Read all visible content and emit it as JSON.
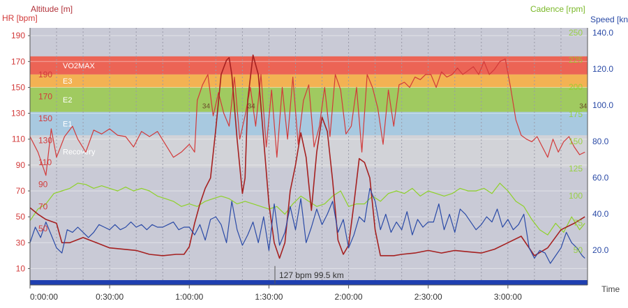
{
  "chart_data": {
    "type": "line",
    "axes": {
      "hr": {
        "title": "HR [bpm]",
        "ticks": [
          10,
          30,
          50,
          70,
          90,
          110,
          130,
          150,
          170,
          190
        ],
        "range": [
          0,
          196
        ],
        "color": "#d23a3a"
      },
      "altitude": {
        "title": "Altitude [m]",
        "ticks": [
          50,
          70,
          90,
          110,
          130,
          150,
          170,
          190
        ],
        "color": "#d23a3a"
      },
      "cadence": {
        "title": "Cadence [rpm]",
        "ticks": [
          50,
          75,
          100,
          125,
          150,
          175,
          200,
          225,
          250
        ],
        "color": "#8fd12a"
      },
      "speed": {
        "title": "Speed [kn",
        "ticks": [
          "20.0",
          "40.0",
          "60.0",
          "80.0",
          "100.0",
          "120.0",
          "140.0"
        ],
        "color": "#2a4aa6"
      },
      "time": {
        "title": "Time",
        "ticks": [
          "0:00:00",
          "0:30:00",
          "1:00:00",
          "1:30:00",
          "2:00:00",
          "2:30:00",
          "3:00:00"
        ],
        "range_min": [
          0,
          210
        ]
      }
    },
    "hr_zones": [
      {
        "name": "VO2MAX",
        "from": 160,
        "to": 174,
        "color": "#ee5e4e"
      },
      {
        "name": "E3",
        "from": 150,
        "to": 160,
        "color": "#f5b04c"
      },
      {
        "name": "E2",
        "from": 131,
        "to": 150,
        "color": "#9ec95a"
      },
      {
        "name": "E1",
        "from": 113,
        "to": 131,
        "color": "#a6c8e0"
      },
      {
        "name": "Recovery",
        "from": 88,
        "to": 113,
        "color": "#d3d3d8"
      }
    ],
    "annotations": [
      "34",
      "34",
      "34"
    ],
    "cursor_label": "127 bpm 99.5 km",
    "series": [
      {
        "name": "HR",
        "axis": "hr",
        "color": "#d23a3a",
        "x": [
          0,
          3,
          6,
          8,
          10,
          13,
          16,
          18,
          21,
          24,
          27,
          30,
          33,
          36,
          39,
          42,
          45,
          48,
          51,
          54,
          57,
          60,
          62,
          63,
          65,
          67,
          69,
          71,
          73,
          75,
          77,
          79,
          81,
          83,
          85,
          87,
          89,
          91,
          93,
          95,
          97,
          99,
          101,
          103,
          105,
          107,
          109,
          111,
          113,
          115,
          117,
          119,
          121,
          123,
          125,
          127,
          129,
          131,
          133,
          135,
          137,
          139,
          141,
          143,
          145,
          147,
          149,
          151,
          153,
          155,
          157,
          159,
          161,
          163,
          165,
          167,
          169,
          171,
          173,
          175,
          177,
          179,
          181,
          183,
          185,
          187,
          189,
          191,
          193,
          195,
          197,
          199,
          201,
          203,
          205,
          207,
          209
        ],
        "y": [
          112,
          100,
          82,
          118,
          96,
          112,
          120,
          110,
          100,
          117,
          114,
          118,
          113,
          112,
          104,
          116,
          112,
          116,
          106,
          96,
          100,
          106,
          100,
          140,
          152,
          160,
          128,
          146,
          130,
          120,
          158,
          110,
          128,
          150,
          120,
          160,
          104,
          148,
          96,
          150,
          110,
          158,
          106,
          140,
          152,
          104,
          120,
          150,
          112,
          160,
          148,
          114,
          120,
          150,
          100,
          160,
          150,
          134,
          106,
          148,
          120,
          152,
          154,
          150,
          158,
          156,
          160,
          160,
          150,
          162,
          158,
          160,
          165,
          160,
          163,
          166,
          160,
          170,
          160,
          164,
          170,
          172,
          150,
          125,
          113,
          110,
          108,
          112,
          104,
          96,
          110,
          100,
          108,
          112,
          104,
          98,
          100
        ]
      },
      {
        "name": "Altitude",
        "axis": "hr",
        "color": "#a52020",
        "x": [
          0,
          3,
          6,
          10,
          12,
          15,
          20,
          25,
          30,
          35,
          40,
          45,
          50,
          55,
          58,
          60,
          62,
          64,
          66,
          68,
          70,
          72,
          74,
          75,
          76,
          78,
          80,
          81,
          82,
          84,
          86,
          88,
          90,
          92,
          94,
          96,
          98,
          100,
          102,
          104,
          106,
          108,
          110,
          112,
          114,
          116,
          118,
          120,
          122,
          124,
          126,
          128,
          130,
          132,
          134,
          137,
          140,
          145,
          150,
          155,
          160,
          165,
          170,
          175,
          180,
          185,
          190,
          195,
          200,
          205,
          209
        ],
        "y": [
          57,
          52,
          48,
          45,
          30,
          30,
          34,
          30,
          26,
          25,
          24,
          21,
          20,
          21,
          21,
          27,
          45,
          60,
          72,
          80,
          118,
          160,
          171,
          173,
          160,
          110,
          68,
          80,
          140,
          175,
          160,
          110,
          60,
          30,
          18,
          30,
          70,
          90,
          115,
          96,
          55,
          100,
          127,
          116,
          78,
          32,
          21,
          28,
          60,
          95,
          92,
          80,
          40,
          20,
          20,
          20,
          21,
          22,
          24,
          22,
          24,
          23,
          22,
          25,
          30,
          35,
          20,
          26,
          40,
          45,
          50
        ]
      },
      {
        "name": "Cadence",
        "axis": "hr",
        "color": "#8fd12a",
        "x": [
          0,
          3,
          6,
          9,
          12,
          15,
          18,
          21,
          24,
          27,
          30,
          33,
          36,
          39,
          42,
          45,
          48,
          51,
          54,
          57,
          60,
          63,
          66,
          69,
          72,
          75,
          78,
          81,
          84,
          87,
          90,
          93,
          96,
          99,
          102,
          105,
          108,
          111,
          114,
          117,
          120,
          123,
          126,
          129,
          132,
          135,
          138,
          141,
          144,
          147,
          150,
          153,
          156,
          159,
          162,
          165,
          168,
          171,
          174,
          177,
          180,
          183,
          186,
          189,
          192,
          195,
          198,
          201,
          204,
          207,
          209
        ],
        "y": [
          47,
          56,
          60,
          68,
          70,
          72,
          76,
          75,
          72,
          74,
          72,
          70,
          73,
          70,
          72,
          70,
          66,
          64,
          62,
          58,
          60,
          58,
          62,
          64,
          66,
          64,
          60,
          62,
          60,
          58,
          56,
          58,
          52,
          60,
          66,
          62,
          58,
          60,
          66,
          70,
          58,
          60,
          60,
          66,
          62,
          68,
          70,
          68,
          72,
          66,
          70,
          68,
          66,
          68,
          72,
          70,
          70,
          72,
          68,
          76,
          70,
          62,
          58,
          48,
          40,
          36,
          45,
          38,
          50,
          40,
          45
        ]
      },
      {
        "name": "Speed",
        "axis": "hr",
        "color": "#2a4aa6",
        "x": [
          0,
          2,
          4,
          6,
          8,
          10,
          12,
          14,
          16,
          18,
          20,
          22,
          24,
          26,
          28,
          30,
          32,
          34,
          36,
          38,
          40,
          42,
          44,
          46,
          48,
          50,
          52,
          54,
          56,
          58,
          60,
          62,
          64,
          66,
          68,
          70,
          72,
          74,
          76,
          78,
          80,
          82,
          84,
          86,
          88,
          90,
          92,
          94,
          96,
          98,
          100,
          102,
          104,
          106,
          108,
          110,
          112,
          114,
          116,
          118,
          120,
          122,
          124,
          126,
          128,
          130,
          132,
          134,
          136,
          138,
          140,
          142,
          144,
          146,
          148,
          150,
          152,
          154,
          156,
          158,
          160,
          162,
          164,
          166,
          168,
          170,
          172,
          174,
          176,
          178,
          180,
          182,
          184,
          186,
          188,
          190,
          192,
          194,
          196,
          198,
          200,
          202,
          204,
          206,
          208,
          209
        ],
        "y": [
          30,
          42,
          34,
          46,
          36,
          26,
          22,
          40,
          38,
          42,
          38,
          34,
          38,
          44,
          42,
          40,
          44,
          40,
          42,
          46,
          42,
          44,
          40,
          44,
          42,
          42,
          44,
          46,
          40,
          42,
          42,
          36,
          44,
          32,
          48,
          50,
          44,
          30,
          62,
          40,
          28,
          36,
          46,
          30,
          50,
          24,
          60,
          28,
          38,
          58,
          40,
          64,
          30,
          42,
          56,
          44,
          52,
          62,
          38,
          48,
          26,
          36,
          50,
          46,
          72,
          62,
          40,
          52,
          38,
          46,
          40,
          54,
          36,
          48,
          42,
          46,
          46,
          60,
          40,
          52,
          38,
          56,
          52,
          46,
          40,
          44,
          50,
          46,
          56,
          42,
          48,
          40,
          44,
          52,
          26,
          18,
          24,
          22,
          14,
          20,
          26,
          38,
          30,
          26,
          20,
          18
        ]
      }
    ]
  }
}
